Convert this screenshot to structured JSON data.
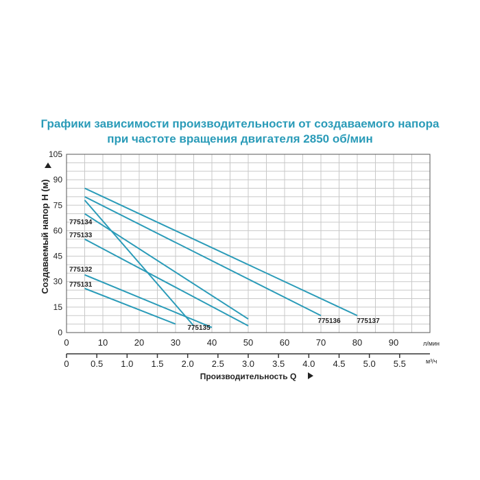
{
  "chart_data": {
    "type": "line",
    "title": "Графики зависимости производительности от создаваемого напора",
    "subtitle": "при частоте вращения двигателя 2850 об/мин",
    "ylabel": "Создаваемый напор H (м)",
    "xlabel": "Производительность Q",
    "x_unit_primary": "л/мин",
    "x_unit_secondary": "м³/ч",
    "xlim": [
      0,
      100
    ],
    "ylim": [
      0,
      105
    ],
    "grid": true,
    "y_ticks": [
      "0",
      "15",
      "30",
      "45",
      "60",
      "75",
      "90",
      "105"
    ],
    "x_ticks_primary": [
      "0",
      "10",
      "20",
      "30",
      "40",
      "50",
      "60",
      "70",
      "80",
      "90"
    ],
    "x_ticks_secondary": [
      "0",
      "0.5",
      "1.0",
      "1.5",
      "2.0",
      "2.5",
      "3.0",
      "3.5",
      "4.0",
      "4.5",
      "5.0",
      "5.5"
    ],
    "series": [
      {
        "name": "775131",
        "x": [
          5,
          30
        ],
        "y": [
          26,
          5
        ]
      },
      {
        "name": "775132",
        "x": [
          5,
          40
        ],
        "y": [
          34,
          3
        ]
      },
      {
        "name": "775133",
        "x": [
          5,
          50
        ],
        "y": [
          55,
          4
        ]
      },
      {
        "name": "775134",
        "x": [
          5,
          50
        ],
        "y": [
          70,
          8
        ]
      },
      {
        "name": "775135",
        "x": [
          5,
          35
        ],
        "y": [
          78,
          4
        ]
      },
      {
        "name": "775136",
        "x": [
          5,
          70
        ],
        "y": [
          80,
          10
        ]
      },
      {
        "name": "775137",
        "x": [
          5,
          80
        ],
        "y": [
          85,
          10
        ]
      }
    ]
  },
  "colors": {
    "title": "#2a9bb8",
    "line": "#2a9bb8",
    "grid": "#c8c8c8",
    "text": "#222222"
  }
}
